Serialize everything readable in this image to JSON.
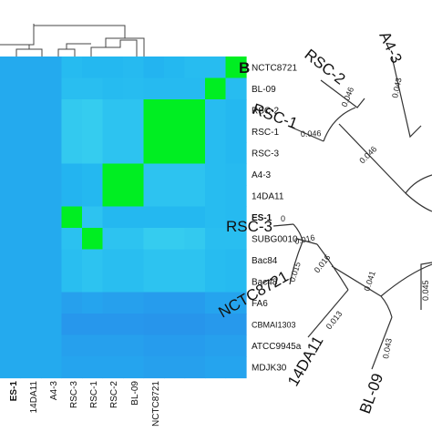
{
  "chart_data": [
    {
      "type": "heatmap",
      "rows": [
        "NCTC8721",
        "BL-09",
        "RSC-2",
        "RSC-1",
        "RSC-3",
        "A4-3",
        "14DA11",
        "ES-1",
        "SUBG0010",
        "Bac84",
        "Bac48",
        "FA6",
        "CBMAI1303",
        "ATCC9945a",
        "MDJK30"
      ],
      "columns_visible": [
        "ES-1",
        "14DA11",
        "A4-3",
        "RSC-3",
        "RSC-1",
        "RSC-2",
        "BL-09",
        "NCTC8721"
      ],
      "bold_labels": [
        "ES-1"
      ],
      "values": [
        [
          0.55,
          0.55,
          0.55,
          0.55,
          0.55,
          0.55,
          0.55,
          0.55,
          0.55,
          0.55,
          0.55,
          0.55,
          0.55,
          0.55,
          0.55
        ],
        [
          0.55,
          0.55,
          0.55,
          0.55,
          0.55,
          0.55,
          0.55,
          0.55,
          0.55,
          0.55,
          0.55,
          0.55,
          0.55,
          0.55,
          0.55
        ],
        [
          0.55,
          0.55,
          0.55,
          0.55,
          0.55,
          0.55,
          0.55,
          0.55,
          0.55,
          0.55,
          0.55,
          0.55,
          0.55,
          0.55,
          0.55
        ],
        [
          0.65,
          0.68,
          0.78,
          0.78,
          0.78,
          0.6,
          0.6,
          0.98,
          0.7,
          0.68,
          0.68,
          0.5,
          0.45,
          0.5,
          0.52
        ],
        [
          0.62,
          0.68,
          0.8,
          0.8,
          0.8,
          0.62,
          0.62,
          0.72,
          0.98,
          0.72,
          0.72,
          0.52,
          0.45,
          0.5,
          0.52
        ],
        [
          0.62,
          0.65,
          0.72,
          0.72,
          0.72,
          0.98,
          0.98,
          0.62,
          0.72,
          0.68,
          0.68,
          0.5,
          0.45,
          0.5,
          0.52
        ],
        [
          0.64,
          0.66,
          0.72,
          0.72,
          0.72,
          0.98,
          0.98,
          0.62,
          0.72,
          0.68,
          0.68,
          0.5,
          0.45,
          0.5,
          0.52
        ],
        [
          0.6,
          0.64,
          0.98,
          0.98,
          0.98,
          0.72,
          0.72,
          0.62,
          0.8,
          0.72,
          0.72,
          0.48,
          0.44,
          0.48,
          0.5
        ],
        [
          0.62,
          0.64,
          0.98,
          0.98,
          0.98,
          0.72,
          0.72,
          0.62,
          0.8,
          0.72,
          0.72,
          0.48,
          0.44,
          0.48,
          0.5
        ],
        [
          0.66,
          0.64,
          0.98,
          0.98,
          0.98,
          0.72,
          0.72,
          0.62,
          0.78,
          0.72,
          0.72,
          0.48,
          0.44,
          0.48,
          0.5
        ],
        [
          0.66,
          0.98,
          0.66,
          0.66,
          0.66,
          0.66,
          0.66,
          0.66,
          0.68,
          0.66,
          0.66,
          0.52,
          0.46,
          0.5,
          0.52
        ],
        [
          0.98,
          0.66,
          0.62,
          0.62,
          0.62,
          0.64,
          0.64,
          0.64,
          0.68,
          0.64,
          0.64,
          0.52,
          0.46,
          0.5,
          0.52
        ]
      ],
      "value_range": [
        0,
        1
      ],
      "colormap": [
        "#1f2fd6",
        "#2a7ae8",
        "#23b7f0",
        "#40d9ef",
        "#00ee22"
      ],
      "grid": false,
      "legend": "none"
    },
    {
      "type": "tree",
      "panel_label": "B",
      "leaves": [
        "A4-3",
        "RSC-2",
        "RSC-1",
        "RSC-3",
        "NCTC8721",
        "14DA11",
        "BL-09"
      ],
      "branch_lengths_shown": [
        "0.046",
        "0.046",
        "0.046",
        "0.043",
        "0",
        "0.016",
        "0.015",
        "0.016",
        "0.013",
        "0.041",
        "0.043",
        "0.045"
      ]
    }
  ],
  "colors": {
    "line": "#333333",
    "text": "#111111"
  }
}
